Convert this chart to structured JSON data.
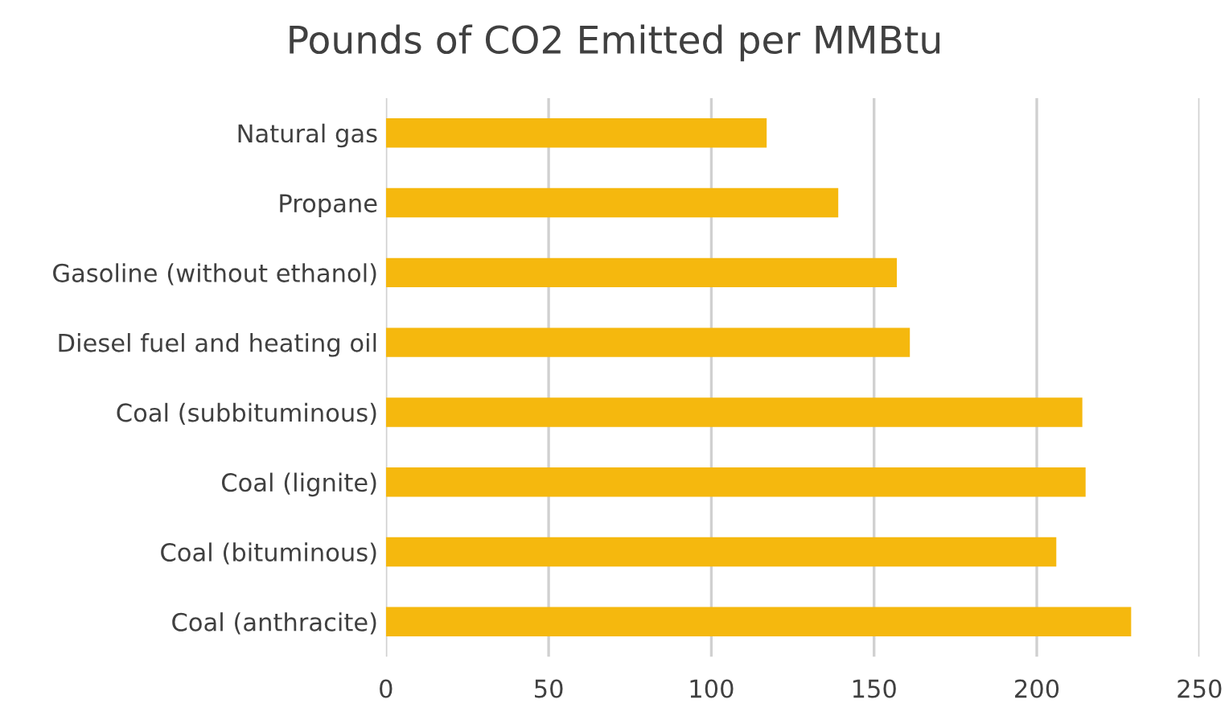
{
  "chart_data": {
    "type": "bar",
    "orientation": "horizontal",
    "title": "Pounds of CO2 Emitted per MMBtu",
    "categories": [
      "Natural gas",
      "Propane",
      "Gasoline (without ethanol)",
      "Diesel fuel and heating oil",
      "Coal (subbituminous)",
      "Coal (lignite)",
      "Coal (bituminous)",
      "Coal (anthracite)"
    ],
    "values": [
      117,
      139,
      157,
      161,
      214,
      215,
      206,
      229
    ],
    "color": "#f5b80e",
    "xlim": [
      0,
      250
    ],
    "xticks": [
      0,
      50,
      100,
      150,
      200,
      250
    ],
    "grid": "x"
  }
}
